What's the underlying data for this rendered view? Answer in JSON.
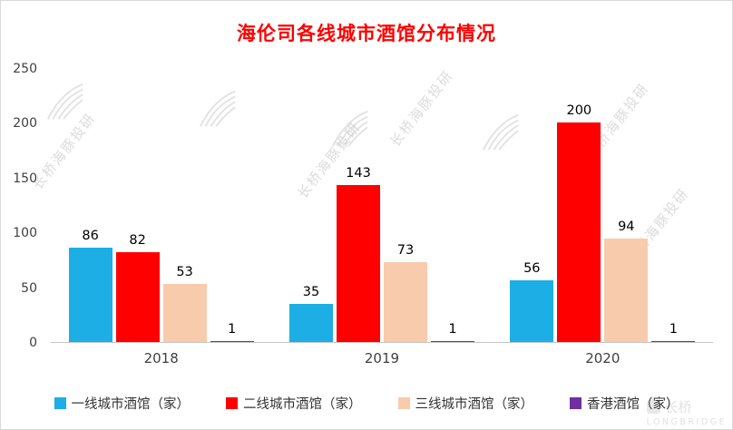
{
  "watermark": {
    "text": "长桥海豚投研",
    "logo_cn": "长桥",
    "logo_en": "LONGBRIDGE"
  },
  "chart_data": {
    "type": "bar",
    "title": "海伦司各线城市酒馆分布情况",
    "title_color": "#FF0000",
    "categories": [
      "2018",
      "2019",
      "2020"
    ],
    "series": [
      {
        "name": "一线城市酒馆（家）",
        "color": "#1CAEE4",
        "values": [
          86,
          35,
          56
        ]
      },
      {
        "name": "二线城市酒馆（家）",
        "color": "#FF0000",
        "values": [
          82,
          143,
          200
        ]
      },
      {
        "name": "三线城市酒馆（家）",
        "color": "#F8CBAD",
        "values": [
          53,
          73,
          94
        ]
      },
      {
        "name": "香港酒馆（家）",
        "color": "#7030A0",
        "values": [
          1,
          1,
          1
        ]
      }
    ],
    "xlabel": "",
    "ylabel": "",
    "ylim": [
      0,
      250
    ],
    "yticks": [
      0,
      50,
      100,
      150,
      200,
      250
    ],
    "grid": false,
    "data_labels": true,
    "legend_position": "bottom"
  }
}
